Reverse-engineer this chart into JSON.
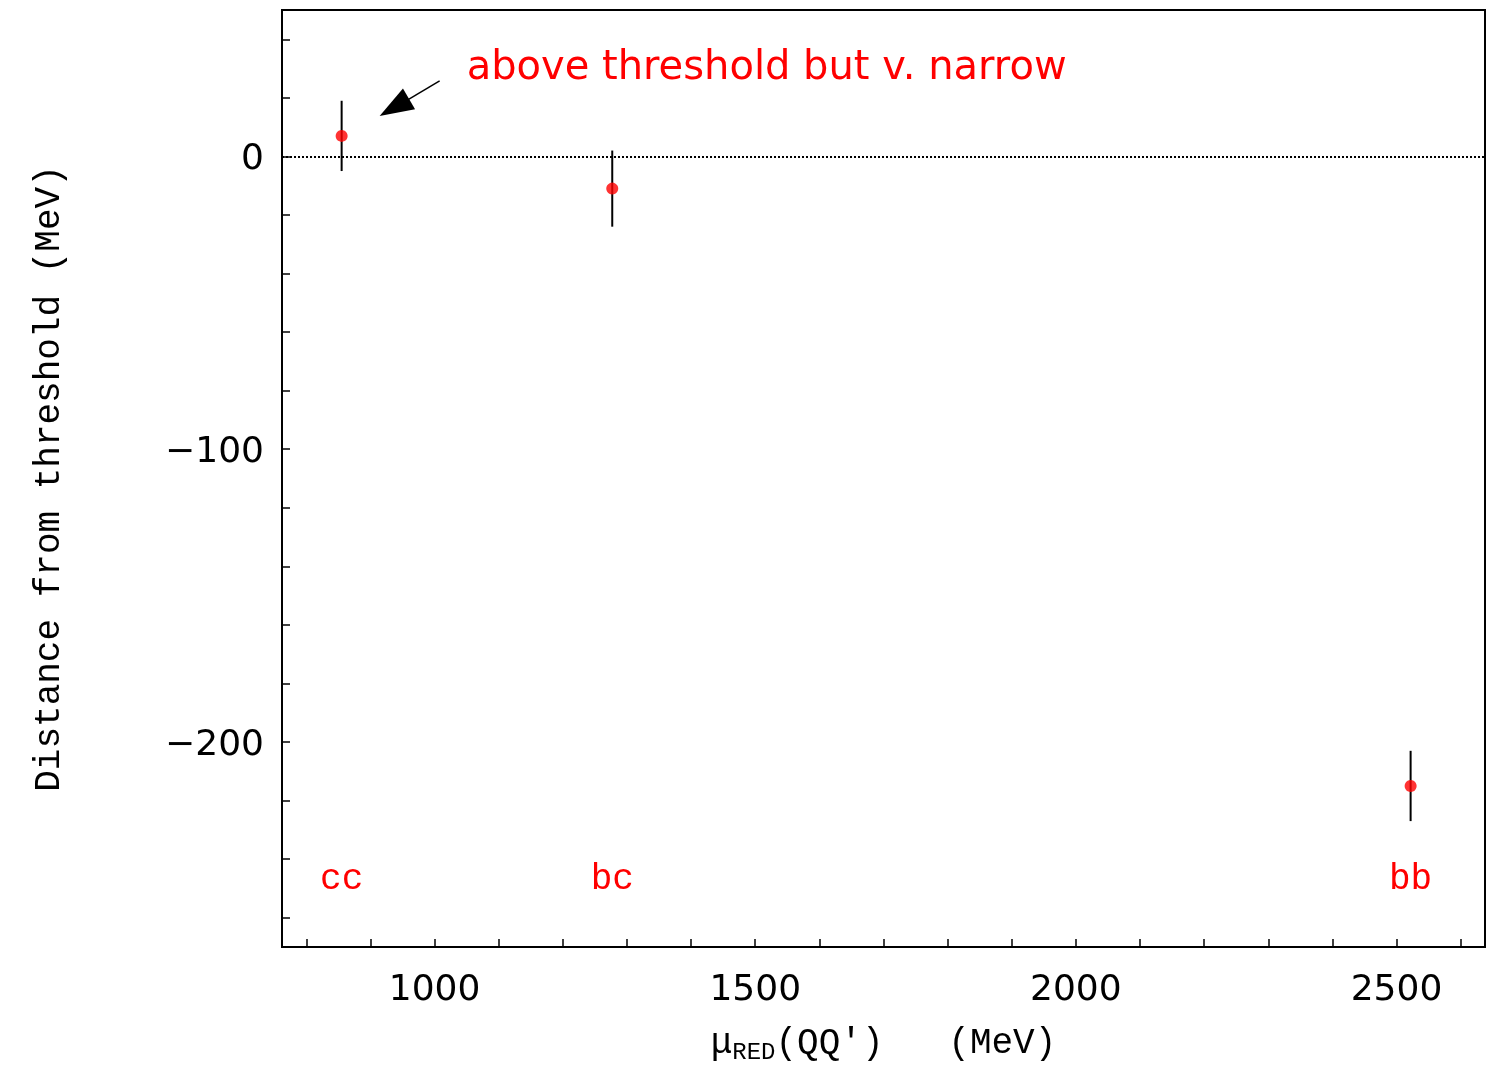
{
  "chart_data": {
    "type": "scatter",
    "xlabel": "μ$_{RED}$(QQ′)   (MeV)",
    "ylabel": "Distance from threshold (MeV)",
    "x": [
      855,
      1277,
      2522
    ],
    "series": [
      {
        "color": "#ff0000",
        "values": [
          7,
          -11,
          -215
        ],
        "errors": [
          12,
          13,
          12
        ]
      }
    ],
    "marker": "circle",
    "xlim": [
      762,
      2638
    ],
    "xticks": [
      {
        "value": 800,
        "label": null
      },
      {
        "value": 900,
        "label": null
      },
      1000,
      {
        "value": 1100,
        "label": null
      },
      {
        "value": 1200,
        "label": null
      },
      {
        "value": 1300,
        "label": null
      },
      {
        "value": 1400,
        "label": null
      },
      1500,
      {
        "value": 1600,
        "label": null
      },
      {
        "value": 1700,
        "label": null
      },
      {
        "value": 1800,
        "label": null
      },
      {
        "value": 1900,
        "label": null
      },
      2000,
      {
        "value": 2100,
        "label": null
      },
      {
        "value": 2200,
        "label": null
      },
      {
        "value": 2300,
        "label": null
      },
      {
        "value": 2400,
        "label": null
      },
      2500,
      {
        "value": 2600,
        "label": null
      }
    ],
    "ylim": [
      -270,
      50
    ],
    "yticks": [
      {
        "value": -260,
        "label": null
      },
      {
        "value": -240,
        "label": null
      },
      {
        "value": -220,
        "label": null
      },
      {
        "value": -200,
        "label": "−200"
      },
      {
        "value": -180,
        "label": null
      },
      {
        "value": -160,
        "label": null
      },
      {
        "value": -140,
        "label": null
      },
      {
        "value": -120,
        "label": null
      },
      {
        "value": -100,
        "label": "−100"
      },
      {
        "value": -80,
        "label": null
      },
      {
        "value": -60,
        "label": null
      },
      {
        "value": -40,
        "label": null
      },
      {
        "value": -20,
        "label": null
      },
      0,
      {
        "value": 20,
        "label": null
      },
      {
        "value": 40,
        "label": null
      }
    ],
    "ref_lines": [
      {
        "axis": "y",
        "value": 0,
        "line_style": "dotted",
        "color": "#000000"
      }
    ],
    "annotations": [
      "above threshold but v. narrow",
      "cc",
      "bc",
      "bb"
    ]
  }
}
